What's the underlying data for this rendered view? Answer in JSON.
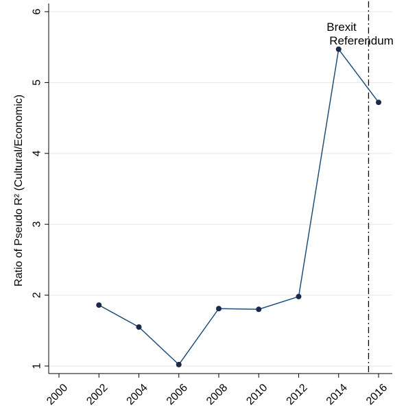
{
  "chart_data": {
    "type": "line",
    "title": "",
    "xlabel": "",
    "ylabel": "Ratio of Pseudo R² (Cultural/Economic)",
    "xlim": [
      2000,
      2016
    ],
    "ylim": [
      1,
      6
    ],
    "x_ticks": [
      "2000",
      "2002",
      "2004",
      "2006",
      "2008",
      "2010",
      "2012",
      "2014",
      "2016"
    ],
    "y_ticks": [
      "1",
      "2",
      "3",
      "4",
      "5",
      "6"
    ],
    "grid": "horizontal",
    "series": [
      {
        "x": [
          2002,
          2004,
          2006,
          2008,
          2010,
          2012,
          2014,
          2016
        ],
        "values": [
          1.86,
          1.55,
          1.02,
          1.81,
          1.8,
          1.98,
          5.47,
          4.72
        ]
      }
    ],
    "reference_line": {
      "x": 2015.5,
      "style": "dash-dot"
    },
    "annotation": {
      "lines": [
        "Brexit",
        "Referendum"
      ],
      "x": 2013.4
    },
    "colors": {
      "line": "#1f4e79",
      "marker": "#1a2a4a",
      "grid": "#e6e6e6"
    }
  }
}
